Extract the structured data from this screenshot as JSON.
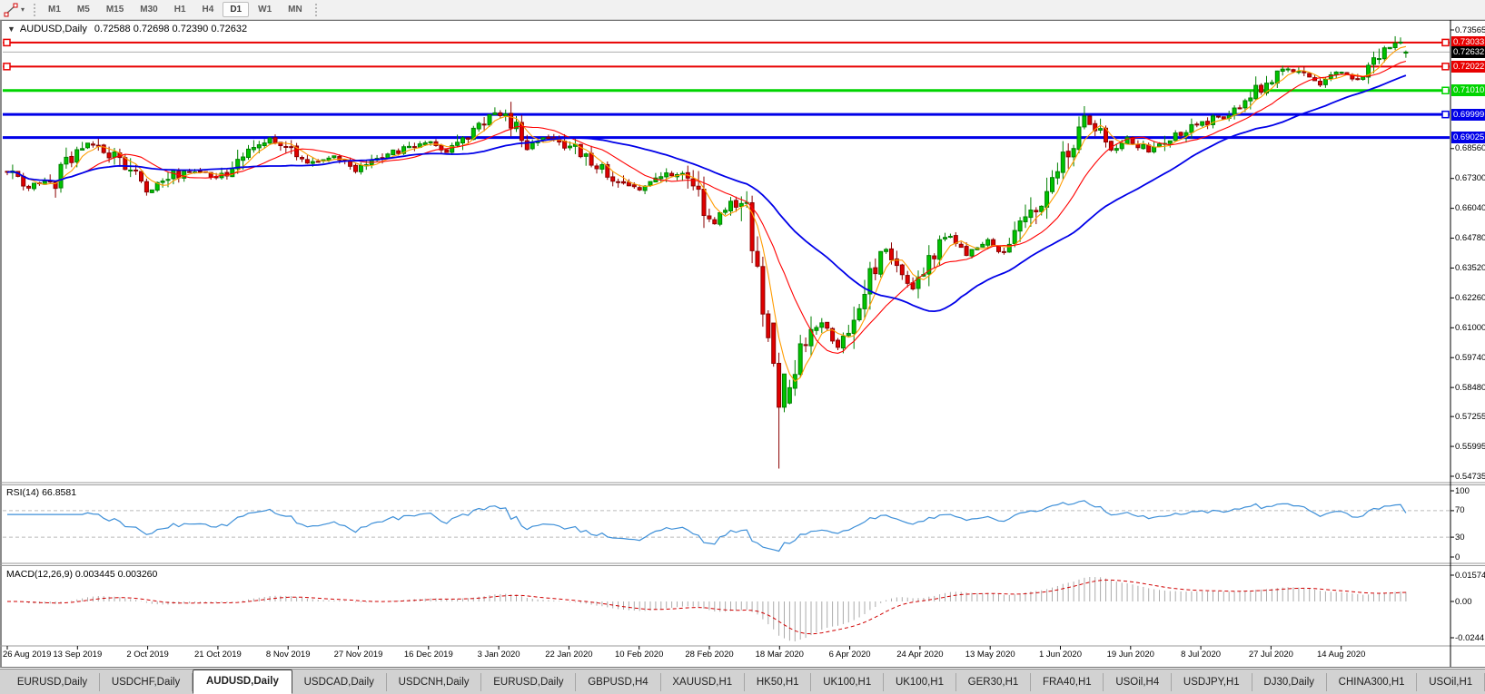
{
  "toolbar": {
    "tool_icon": "crosshair-line-tool",
    "dropdown_caret": "▾",
    "timeframes": [
      {
        "label": "M1",
        "active": false
      },
      {
        "label": "M5",
        "active": false
      },
      {
        "label": "M15",
        "active": false
      },
      {
        "label": "M30",
        "active": false
      },
      {
        "label": "H1",
        "active": false
      },
      {
        "label": "H4",
        "active": false
      },
      {
        "label": "D1",
        "active": true
      },
      {
        "label": "W1",
        "active": false
      },
      {
        "label": "MN",
        "active": false
      }
    ]
  },
  "chart": {
    "title_arrow": "▼",
    "symbol_title": "AUDUSD,Daily",
    "ohlc": "0.72588 0.72698 0.72390 0.72632",
    "price_axis": {
      "ticks": [
        "0.73565",
        "0.68560",
        "0.67300",
        "0.66040",
        "0.64780",
        "0.63520",
        "0.62260",
        "0.61000",
        "0.59740",
        "0.58480",
        "0.57255",
        "0.55995",
        "0.54735"
      ]
    },
    "current_price": {
      "label": "0.72632",
      "value": 0.72632,
      "line_color": "#adadad",
      "label_bg": "#000000"
    },
    "lines": [
      {
        "label": "0.73033",
        "price": 0.73033,
        "color": "#e80000",
        "width": 2,
        "handles": [
          "left",
          "right"
        ]
      },
      {
        "label": "0.72022",
        "price": 0.72022,
        "color": "#e80000",
        "width": 2,
        "handles": [
          "left",
          "right"
        ]
      },
      {
        "label": "0.71010",
        "price": 0.7101,
        "color": "#00d400",
        "width": 3,
        "handles": [
          "right"
        ]
      },
      {
        "label": "0.69999",
        "price": 0.69999,
        "color": "#0000e8",
        "width": 3,
        "handles": [
          "right"
        ]
      },
      {
        "label": "0.69025",
        "price": 0.69025,
        "color": "#0000e8",
        "width": 3,
        "handles": []
      }
    ],
    "dates": [
      "26 Aug 2019",
      "13 Sep 2019",
      "2 Oct 2019",
      "21 Oct 2019",
      "8 Nov 2019",
      "27 Nov 2019",
      "16 Dec 2019",
      "3 Jan 2020",
      "22 Jan 2020",
      "10 Feb 2020",
      "28 Feb 2020",
      "18 Mar 2020",
      "6 Apr 2020",
      "24 Apr 2020",
      "13 May 2020",
      "1 Jun 2020",
      "19 Jun 2020",
      "8 Jul 2020",
      "27 Jul 2020",
      "14 Aug 2020"
    ]
  },
  "rsi": {
    "label": "RSI(14) 66.8581",
    "value": 66.8581,
    "ticks": [
      "100",
      "70",
      "30",
      "0"
    ],
    "levels": [
      70,
      30
    ],
    "line_color": "#3d8fd8"
  },
  "macd": {
    "label": "MACD(12,26,9) 0.003445 0.003260",
    "macd_value": 0.003445,
    "signal_value": 0.00326,
    "ticks": [
      "0.01574",
      "0.00",
      "-0.02441"
    ],
    "hist_color": "#ababab",
    "signal_color": "#d00000"
  },
  "tabs": [
    {
      "label": "EURUSD,Daily",
      "active": false
    },
    {
      "label": "USDCHF,Daily",
      "active": false
    },
    {
      "label": "AUDUSD,Daily",
      "active": true
    },
    {
      "label": "USDCAD,Daily",
      "active": false
    },
    {
      "label": "USDCNH,Daily",
      "active": false
    },
    {
      "label": "EURUSD,Daily",
      "active": false
    },
    {
      "label": "GBPUSD,H4",
      "active": false
    },
    {
      "label": "XAUUSD,H1",
      "active": false
    },
    {
      "label": "HK50,H1",
      "active": false
    },
    {
      "label": "UK100,H1",
      "active": false
    },
    {
      "label": "UK100,H1",
      "active": false
    },
    {
      "label": "GER30,H1",
      "active": false
    },
    {
      "label": "FRA40,H1",
      "active": false
    },
    {
      "label": "USOil,H4",
      "active": false
    },
    {
      "label": "USDJPY,H1",
      "active": false
    },
    {
      "label": "DJ30,Daily",
      "active": false
    },
    {
      "label": "CHINA300,H1",
      "active": false
    },
    {
      "label": "USOil,H1",
      "active": false
    }
  ],
  "chart_data": {
    "type": "candlestick",
    "symbol": "AUDUSD",
    "timeframe": "Daily",
    "x_range": [
      "26 Aug 2019",
      "4 Sep 2020"
    ],
    "price_axis_range": [
      0.54735,
      0.73565
    ],
    "last_ohlc": {
      "open": 0.72588,
      "high": 0.72698,
      "low": 0.7239,
      "close": 0.72632
    },
    "crash_low": 0.5506,
    "bar_count": 262,
    "seed": 20200904,
    "price_anchors": [
      [
        0,
        0.676
      ],
      [
        4,
        0.67
      ],
      [
        9,
        0.672
      ],
      [
        14,
        0.688
      ],
      [
        19,
        0.684
      ],
      [
        23,
        0.676
      ],
      [
        26,
        0.667
      ],
      [
        31,
        0.6745
      ],
      [
        36,
        0.677
      ],
      [
        39,
        0.6725
      ],
      [
        45,
        0.684
      ],
      [
        49,
        0.6895
      ],
      [
        52,
        0.686
      ],
      [
        57,
        0.679
      ],
      [
        61,
        0.6815
      ],
      [
        65,
        0.6765
      ],
      [
        70,
        0.683
      ],
      [
        75,
        0.6855
      ],
      [
        79,
        0.688
      ],
      [
        82,
        0.685
      ],
      [
        87,
        0.6935
      ],
      [
        91,
        0.7005
      ],
      [
        94,
        0.698
      ],
      [
        97,
        0.687
      ],
      [
        101,
        0.6905
      ],
      [
        105,
        0.687
      ],
      [
        110,
        0.6775
      ],
      [
        114,
        0.6715
      ],
      [
        118,
        0.669
      ],
      [
        122,
        0.673
      ],
      [
        127,
        0.676
      ],
      [
        130,
        0.6605
      ],
      [
        132,
        0.6545
      ],
      [
        135,
        0.664
      ],
      [
        138,
        0.658
      ],
      [
        140,
        0.633
      ],
      [
        142,
        0.608
      ],
      [
        144,
        0.576
      ],
      [
        146,
        0.585
      ],
      [
        149,
        0.606
      ],
      [
        152,
        0.614
      ],
      [
        155,
        0.601
      ],
      [
        157,
        0.609
      ],
      [
        161,
        0.633
      ],
      [
        164,
        0.643
      ],
      [
        167,
        0.631
      ],
      [
        169,
        0.628
      ],
      [
        172,
        0.64
      ],
      [
        176,
        0.649
      ],
      [
        179,
        0.642
      ],
      [
        183,
        0.647
      ],
      [
        186,
        0.641
      ],
      [
        190,
        0.654
      ],
      [
        194,
        0.666
      ],
      [
        197,
        0.68
      ],
      [
        201,
        0.699
      ],
      [
        203,
        0.694
      ],
      [
        206,
        0.685
      ],
      [
        209,
        0.6905
      ],
      [
        211,
        0.686
      ],
      [
        214,
        0.6845
      ],
      [
        217,
        0.6905
      ],
      [
        220,
        0.6935
      ],
      [
        223,
        0.6965
      ],
      [
        227,
        0.699
      ],
      [
        229,
        0.7005
      ],
      [
        232,
        0.709
      ],
      [
        236,
        0.715
      ],
      [
        239,
        0.7195
      ],
      [
        242,
        0.716
      ],
      [
        245,
        0.713
      ],
      [
        249,
        0.7185
      ],
      [
        252,
        0.7145
      ],
      [
        255,
        0.723
      ],
      [
        258,
        0.7285
      ],
      [
        260,
        0.7305
      ],
      [
        261,
        0.72632
      ]
    ],
    "overrides": [
      {
        "i": 91,
        "high": 0.703
      },
      {
        "i": 143,
        "open": 0.612,
        "close": 0.595
      },
      {
        "i": 144,
        "open": 0.595,
        "close": 0.5765,
        "high": 0.5995,
        "low": 0.5506
      },
      {
        "i": 145,
        "open": 0.5765,
        "close": 0.5905
      },
      {
        "i": 201,
        "high": 0.7035
      },
      {
        "i": 259,
        "high": 0.733
      },
      {
        "i": 260,
        "high": 0.7325
      },
      {
        "i": 261,
        "open": 0.72588,
        "high": 0.72698,
        "low": 0.7239,
        "close": 0.72632
      }
    ],
    "moving_averages": [
      {
        "period": 5,
        "color": "#ff9c00",
        "width": 1.1
      },
      {
        "period": 13,
        "color": "#ff0000",
        "width": 1.1
      },
      {
        "period": 34,
        "color": "#0000e8",
        "width": 1.8
      }
    ],
    "colors": {
      "up_fill": "#00c400",
      "up_stroke": "#008000",
      "down_fill": "#e00000",
      "down_stroke": "#8b0000"
    }
  }
}
